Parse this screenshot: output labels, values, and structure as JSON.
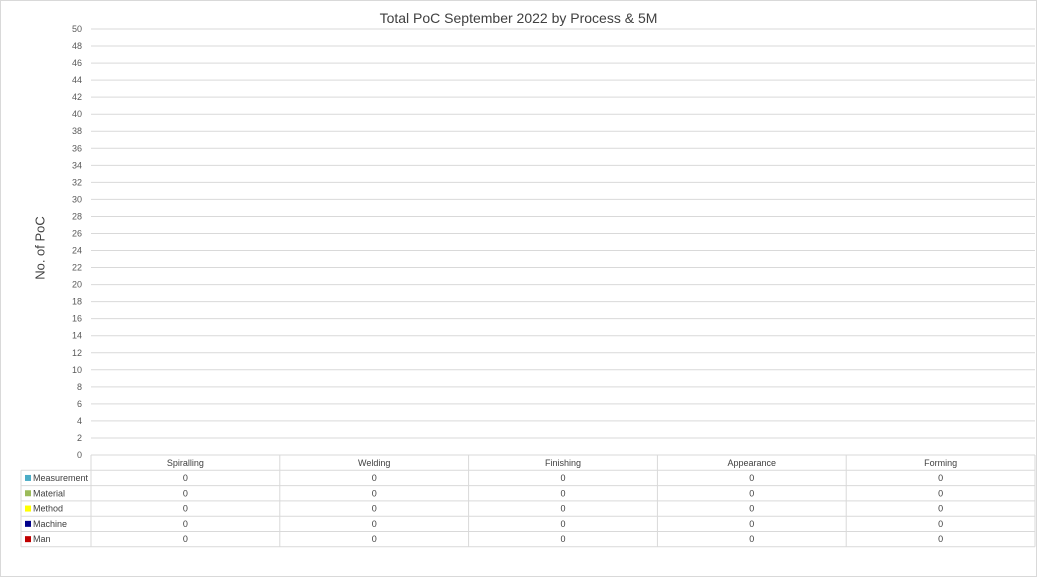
{
  "chart_data": {
    "type": "bar",
    "title": "Total PoC September 2022  by Process & 5M",
    "ylabel": "No. of PoC",
    "xlabel": "",
    "ylim": [
      0,
      50
    ],
    "yticks": [
      0,
      2,
      4,
      6,
      8,
      10,
      12,
      14,
      16,
      18,
      20,
      22,
      24,
      26,
      28,
      30,
      32,
      34,
      36,
      38,
      40,
      42,
      44,
      46,
      48,
      50
    ],
    "grid": true,
    "legend": "data-table",
    "categories": [
      "Spiralling",
      "Welding",
      "Finishing",
      "Appearance",
      "Forming"
    ],
    "series": [
      {
        "name": "Measurement",
        "color": "#4bacc6",
        "values": [
          0,
          0,
          0,
          0,
          0
        ]
      },
      {
        "name": "Material",
        "color": "#9bbb59",
        "values": [
          0,
          0,
          0,
          0,
          0
        ]
      },
      {
        "name": "Method",
        "color": "#ffff00",
        "values": [
          0,
          0,
          0,
          0,
          0
        ]
      },
      {
        "name": "Machine",
        "color": "#00008b",
        "values": [
          0,
          0,
          0,
          0,
          0
        ]
      },
      {
        "name": "Man",
        "color": "#c00000",
        "values": [
          0,
          0,
          0,
          0,
          0
        ]
      }
    ]
  }
}
